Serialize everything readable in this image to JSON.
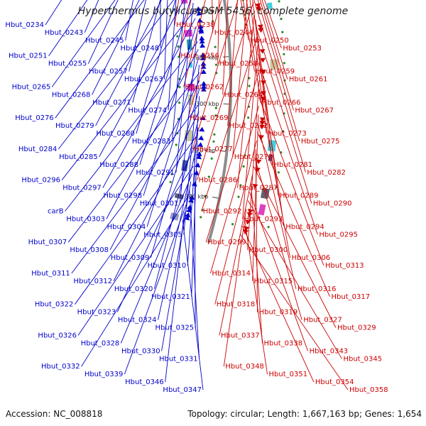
{
  "title": "Hyperthermus butylicus DSM 5456, complete genome",
  "accession": "Accession: NC_008818",
  "stats": "Topology: circular; Length: 1,667,163 bp; Genes: 1,654",
  "colors": {
    "forward": "#cc0000",
    "reverse": "#0000cc",
    "backbone": "#8c8c8c",
    "orf_dash": "#2a8a2a"
  },
  "ticks": [
    {
      "label": "200 kbp",
      "bp": 200000
    },
    {
      "label": "220 kbp",
      "bp": 220000
    },
    {
      "label": "240 kbp",
      "bp": 240000
    },
    {
      "label": "260 kbp",
      "bp": 260000
    },
    {
      "label": "280 kbp",
      "bp": 280000
    },
    {
      "label": "300 kbp",
      "bp": 300000
    },
    {
      "label": "320 kbp",
      "bp": 320000
    },
    {
      "label": "340 kbp",
      "bp": 340000
    }
  ],
  "genes_forward": [
    "Hbut_0238",
    "Hbut_0244",
    "Hbut_0250",
    "Hbut_0253",
    "Hbut_0256",
    "Hbut_0258",
    "Hbut_0259",
    "Hbut_0261",
    "Hbut_0262",
    "Hbut_0264",
    "Hbut_0266",
    "Hbut_0267",
    "Hbut_0269",
    "Hbut_0272",
    "Hbut_0273",
    "Hbut_0275",
    "Hbut_0277",
    "Hbut_0278",
    "Hbut_0281",
    "Hbut_0282",
    "Hbut_0286",
    "Hbut_0287",
    "Hbut_0289",
    "Hbut_0290",
    "Hbut_0292",
    "Hbut_0293",
    "Hbut_0294",
    "Hbut_0295",
    "Hbut_0299",
    "Hbut_0300",
    "Hbut_0306",
    "Hbut_0313",
    "Hbut_0314",
    "Hbut_0315",
    "Hbut_0316",
    "Hbut_0317",
    "Hbut_0318",
    "Hbut_0319",
    "Hbut_0327",
    "Hbut_0329",
    "Hbut_0337",
    "Hbut_0338",
    "Hbut_0343",
    "Hbut_0345",
    "Hbut_0348",
    "Hbut_0351",
    "Hbut_0354",
    "Hbut_0358"
  ],
  "genes_reverse": [
    "Hbut_0234",
    "Hbut_0243",
    "Hbut_0245",
    "Hbut_0248",
    "Hbut_0251",
    "Hbut_0255",
    "Hbut_0257",
    "Hbut_0263",
    "Hbut_0265",
    "Hbut_0268",
    "Hbut_0271",
    "Hbut_0274",
    "Hbut_0276",
    "Hbut_0279",
    "Hbut_0280",
    "Hbut_0283",
    "Hbut_0284",
    "Hbut_0285",
    "Hbut_0288",
    "Hbut_0291",
    "Hbut_0296",
    "Hbut_0297",
    "Hbut_0298",
    "Hbut_0301",
    "carB",
    "Hbut_0303",
    "Hbut_0304",
    "Hbut_0305",
    "Hbut_0307",
    "Hbut_0308",
    "Hbut_0309",
    "Hbut_0310",
    "Hbut_0311",
    "Hbut_0312",
    "Hbut_0320",
    "Hbut_0321",
    "Hbut_0322",
    "Hbut_0323",
    "Hbut_0324",
    "Hbut_0325",
    "Hbut_0326",
    "Hbut_0328",
    "Hbut_0330",
    "Hbut_0331",
    "Hbut_0332",
    "Hbut_0339",
    "Hbut_0346",
    "Hbut_0347"
  ]
}
